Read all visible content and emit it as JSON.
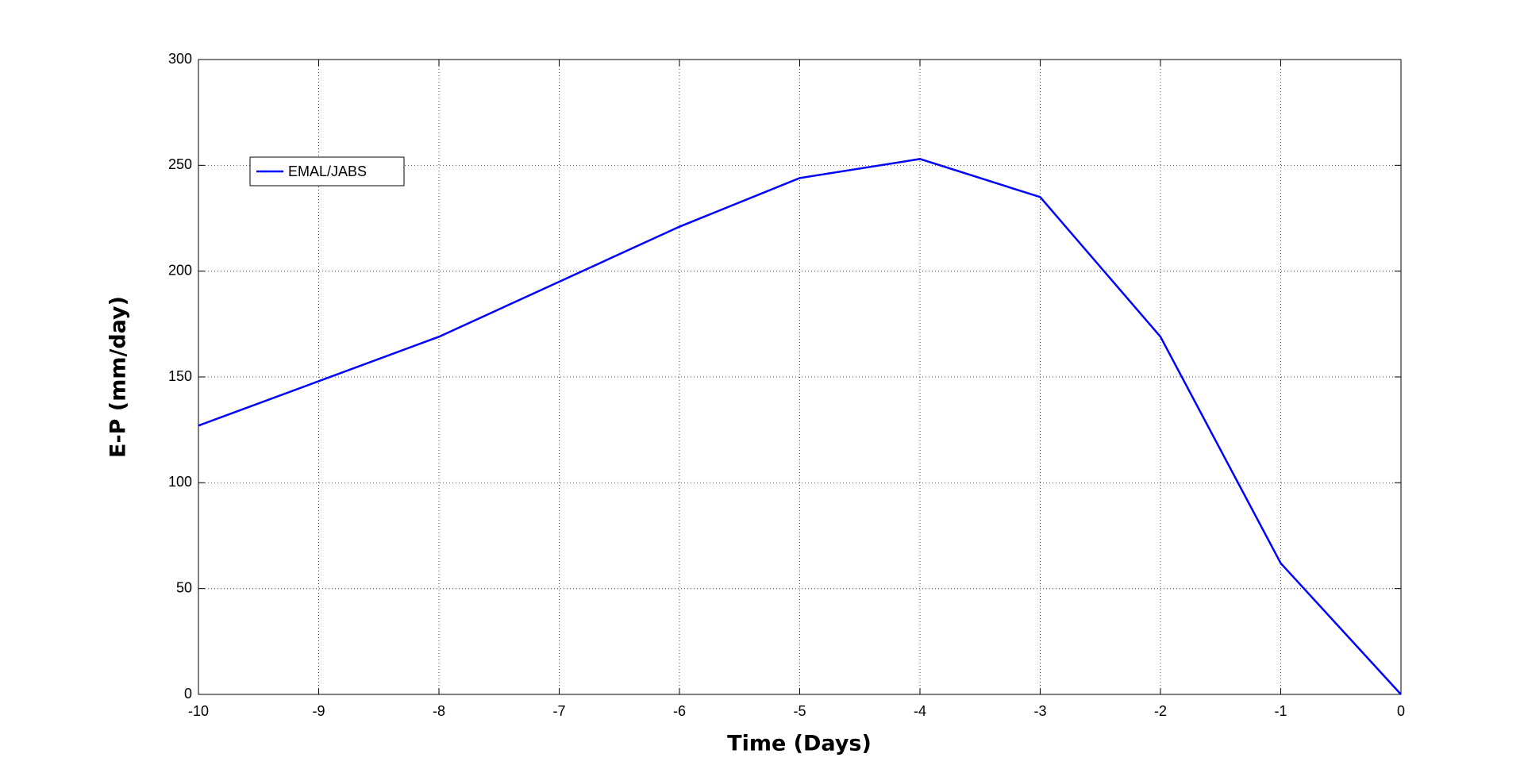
{
  "chart_data": {
    "type": "line",
    "xlabel": "Time (Days)",
    "ylabel": "E-P (mm/day)",
    "x": [
      -10,
      -9,
      -8,
      -7,
      -6,
      -5,
      -4,
      -3,
      -2,
      -1,
      0
    ],
    "series": [
      {
        "name": "EMAL/JABS",
        "color": "#0000ff",
        "values": [
          127,
          148,
          169,
          195,
          221,
          244,
          253,
          235,
          169,
          62,
          0
        ]
      }
    ],
    "xlim": [
      -10,
      0
    ],
    "xticks": [
      -10,
      -9,
      -8,
      -7,
      -6,
      -5,
      -4,
      -3,
      -2,
      -1,
      0
    ],
    "ylim": [
      0,
      300
    ],
    "yticks": [
      0,
      50,
      100,
      150,
      200,
      250,
      300
    ],
    "grid": true,
    "legend": "upper-left"
  }
}
